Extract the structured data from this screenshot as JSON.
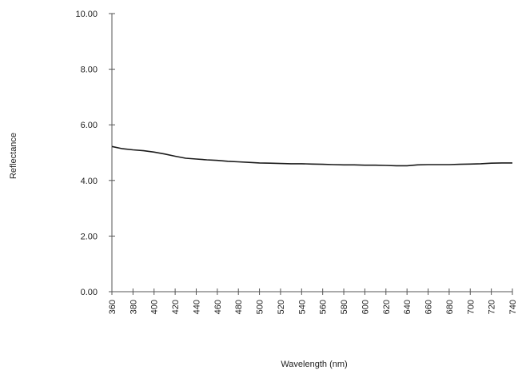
{
  "chart_data": {
    "type": "line",
    "title": "",
    "xlabel": "Wavelength (nm)",
    "ylabel": "Reflectance",
    "xlim": [
      360,
      740
    ],
    "ylim": [
      0,
      10
    ],
    "grid": false,
    "line_color": "#1a1a1a",
    "axis_color": "#555555",
    "x_ticks": [
      "360",
      "380",
      "400",
      "420",
      "440",
      "460",
      "480",
      "500",
      "520",
      "540",
      "560",
      "580",
      "600",
      "620",
      "640",
      "660",
      "680",
      "700",
      "720",
      "740"
    ],
    "y_ticks": [
      "0.00",
      "2.00",
      "4.00",
      "6.00",
      "8.00",
      "10.00"
    ],
    "series": [
      {
        "x": [
          360,
          370,
          380,
          390,
          400,
          410,
          420,
          430,
          440,
          450,
          460,
          470,
          480,
          490,
          500,
          510,
          520,
          530,
          540,
          550,
          560,
          570,
          580,
          590,
          600,
          610,
          620,
          630,
          640,
          650,
          660,
          670,
          680,
          690,
          700,
          710,
          720,
          730,
          740
        ],
        "y": [
          5.22,
          5.14,
          5.1,
          5.07,
          5.02,
          4.95,
          4.87,
          4.8,
          4.77,
          4.74,
          4.72,
          4.69,
          4.67,
          4.65,
          4.63,
          4.62,
          4.61,
          4.6,
          4.6,
          4.59,
          4.58,
          4.57,
          4.56,
          4.56,
          4.55,
          4.55,
          4.54,
          4.53,
          4.53,
          4.56,
          4.57,
          4.57,
          4.57,
          4.58,
          4.59,
          4.6,
          4.62,
          4.63,
          4.63
        ]
      }
    ]
  }
}
